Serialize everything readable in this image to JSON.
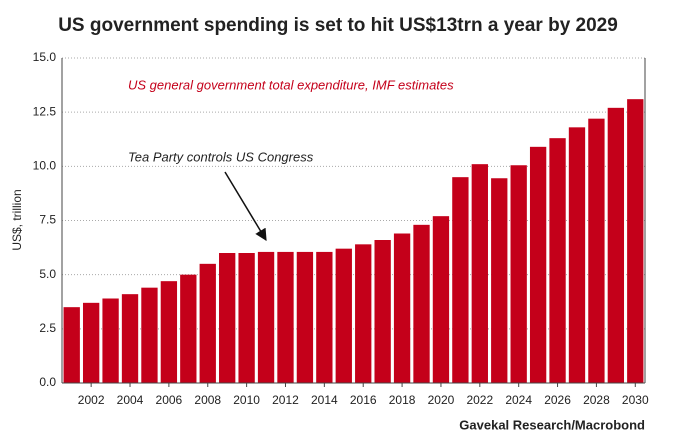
{
  "chart_data": {
    "type": "bar",
    "title": "US government spending is set to hit US$13trn a year by 2029",
    "subtitle": "US general government total expenditure, IMF estimates",
    "annotation": "Tea Party controls US Congress",
    "source": "Gavekal Research/Macrobond",
    "y_label": "US$, trillion",
    "x": [
      2001,
      2002,
      2003,
      2004,
      2005,
      2006,
      2007,
      2008,
      2009,
      2010,
      2011,
      2012,
      2013,
      2014,
      2015,
      2016,
      2017,
      2018,
      2019,
      2020,
      2021,
      2022,
      2023,
      2024,
      2025,
      2026,
      2027,
      2028,
      2029,
      2030
    ],
    "values": [
      3.5,
      3.7,
      3.9,
      4.1,
      4.4,
      4.7,
      5.0,
      5.5,
      6.0,
      6.0,
      6.05,
      6.05,
      6.05,
      6.05,
      6.2,
      6.4,
      6.6,
      6.9,
      7.3,
      7.7,
      9.5,
      10.1,
      9.45,
      10.05,
      10.9,
      11.3,
      11.8,
      12.2,
      12.7,
      13.1
    ],
    "color": "#c4001a",
    "xlim": [
      2000.5,
      2030.5
    ],
    "xticks": [
      2002,
      2004,
      2006,
      2008,
      2010,
      2012,
      2014,
      2016,
      2018,
      2020,
      2022,
      2024,
      2026,
      2028,
      2030
    ],
    "ylim": [
      0,
      15
    ],
    "yticks": [
      {
        "value": 0,
        "label": "0.0"
      },
      2.5,
      {
        "value": 5,
        "label": "5.0"
      },
      7.5,
      {
        "value": 10,
        "label": "10.0"
      },
      12.5,
      {
        "value": 15,
        "label": "15.0"
      }
    ],
    "grid": true
  }
}
